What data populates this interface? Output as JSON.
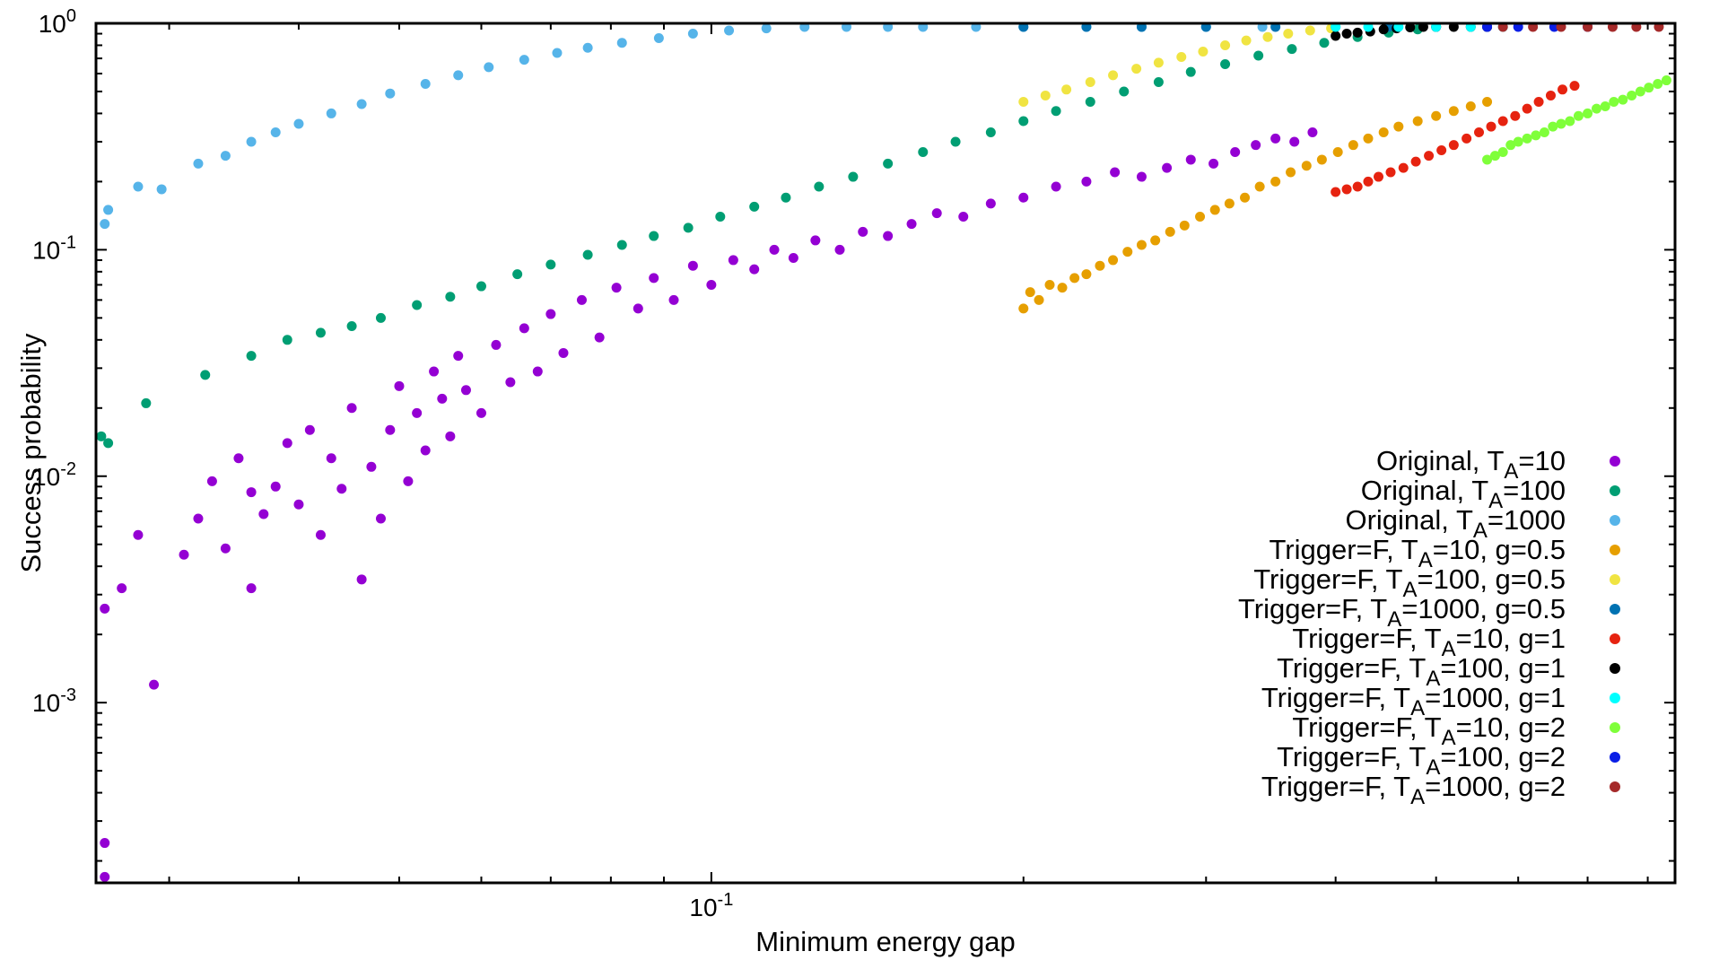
{
  "chart_data": {
    "type": "scatter",
    "xlabel": "Minimum energy gap",
    "ylabel": "Success probability",
    "xscale": "log",
    "yscale": "log",
    "xlim": [
      0.0255,
      0.85
    ],
    "ylim": [
      0.00016,
      1.0
    ],
    "grid": false,
    "legend_position": "bottom-right",
    "x_tick_labels": [
      {
        "value": 0.1,
        "base": "10",
        "exp": "-1"
      }
    ],
    "y_tick_labels": [
      {
        "value": 1,
        "base": "10",
        "exp": "0"
      },
      {
        "value": 0.1,
        "base": "10",
        "exp": "-1"
      },
      {
        "value": 0.01,
        "base": "10",
        "exp": "-2"
      },
      {
        "value": 0.001,
        "base": "10",
        "exp": "-3"
      }
    ],
    "series": [
      {
        "name_parts": [
          "Original, T",
          "A",
          "=10"
        ],
        "color": "#9400d3",
        "points": [
          [
            0.026,
            0.00017
          ],
          [
            0.026,
            0.00024
          ],
          [
            0.026,
            0.0026
          ],
          [
            0.027,
            0.0032
          ],
          [
            0.028,
            0.0055
          ],
          [
            0.029,
            0.0012
          ],
          [
            0.031,
            0.0045
          ],
          [
            0.032,
            0.0065
          ],
          [
            0.033,
            0.0095
          ],
          [
            0.034,
            0.0048
          ],
          [
            0.035,
            0.012
          ],
          [
            0.036,
            0.0085
          ],
          [
            0.036,
            0.0032
          ],
          [
            0.037,
            0.0068
          ],
          [
            0.038,
            0.009
          ],
          [
            0.039,
            0.014
          ],
          [
            0.04,
            0.0075
          ],
          [
            0.041,
            0.016
          ],
          [
            0.042,
            0.0055
          ],
          [
            0.043,
            0.012
          ],
          [
            0.044,
            0.0088
          ],
          [
            0.045,
            0.02
          ],
          [
            0.046,
            0.0035
          ],
          [
            0.047,
            0.011
          ],
          [
            0.048,
            0.0065
          ],
          [
            0.049,
            0.016
          ],
          [
            0.05,
            0.025
          ],
          [
            0.051,
            0.0095
          ],
          [
            0.052,
            0.019
          ],
          [
            0.053,
            0.013
          ],
          [
            0.054,
            0.029
          ],
          [
            0.055,
            0.022
          ],
          [
            0.056,
            0.015
          ],
          [
            0.057,
            0.034
          ],
          [
            0.058,
            0.024
          ],
          [
            0.06,
            0.019
          ],
          [
            0.062,
            0.038
          ],
          [
            0.064,
            0.026
          ],
          [
            0.066,
            0.045
          ],
          [
            0.068,
            0.029
          ],
          [
            0.07,
            0.052
          ],
          [
            0.072,
            0.035
          ],
          [
            0.075,
            0.06
          ],
          [
            0.078,
            0.041
          ],
          [
            0.081,
            0.068
          ],
          [
            0.085,
            0.055
          ],
          [
            0.088,
            0.075
          ],
          [
            0.092,
            0.06
          ],
          [
            0.096,
            0.085
          ],
          [
            0.1,
            0.07
          ],
          [
            0.105,
            0.09
          ],
          [
            0.11,
            0.082
          ],
          [
            0.115,
            0.1
          ],
          [
            0.12,
            0.092
          ],
          [
            0.126,
            0.11
          ],
          [
            0.133,
            0.1
          ],
          [
            0.14,
            0.12
          ],
          [
            0.148,
            0.115
          ],
          [
            0.156,
            0.13
          ],
          [
            0.165,
            0.145
          ],
          [
            0.175,
            0.14
          ],
          [
            0.186,
            0.16
          ],
          [
            0.2,
            0.17
          ],
          [
            0.215,
            0.19
          ],
          [
            0.23,
            0.2
          ],
          [
            0.245,
            0.22
          ],
          [
            0.26,
            0.21
          ],
          [
            0.275,
            0.23
          ],
          [
            0.29,
            0.25
          ],
          [
            0.305,
            0.24
          ],
          [
            0.32,
            0.27
          ],
          [
            0.335,
            0.29
          ],
          [
            0.35,
            0.31
          ],
          [
            0.365,
            0.3
          ],
          [
            0.38,
            0.33
          ]
        ]
      },
      {
        "name_parts": [
          "Original, T",
          "A",
          "=100"
        ],
        "color": "#009e73",
        "points": [
          [
            0.0258,
            0.015
          ],
          [
            0.0262,
            0.014
          ],
          [
            0.0285,
            0.021
          ],
          [
            0.0325,
            0.028
          ],
          [
            0.036,
            0.034
          ],
          [
            0.039,
            0.04
          ],
          [
            0.042,
            0.043
          ],
          [
            0.045,
            0.046
          ],
          [
            0.048,
            0.05
          ],
          [
            0.052,
            0.057
          ],
          [
            0.056,
            0.062
          ],
          [
            0.06,
            0.069
          ],
          [
            0.065,
            0.078
          ],
          [
            0.07,
            0.086
          ],
          [
            0.076,
            0.095
          ],
          [
            0.082,
            0.105
          ],
          [
            0.088,
            0.115
          ],
          [
            0.095,
            0.125
          ],
          [
            0.102,
            0.14
          ],
          [
            0.11,
            0.155
          ],
          [
            0.118,
            0.17
          ],
          [
            0.127,
            0.19
          ],
          [
            0.137,
            0.21
          ],
          [
            0.148,
            0.24
          ],
          [
            0.16,
            0.27
          ],
          [
            0.172,
            0.3
          ],
          [
            0.186,
            0.33
          ],
          [
            0.2,
            0.37
          ],
          [
            0.215,
            0.41
          ],
          [
            0.232,
            0.45
          ],
          [
            0.25,
            0.5
          ],
          [
            0.27,
            0.55
          ],
          [
            0.29,
            0.61
          ],
          [
            0.313,
            0.66
          ],
          [
            0.337,
            0.72
          ],
          [
            0.363,
            0.77
          ],
          [
            0.39,
            0.82
          ],
          [
            0.42,
            0.87
          ],
          [
            0.45,
            0.91
          ],
          [
            0.48,
            0.94
          ]
        ]
      },
      {
        "name_parts": [
          "Original, T",
          "A",
          "=1000"
        ],
        "color": "#56b4e9",
        "points": [
          [
            0.026,
            0.13
          ],
          [
            0.0262,
            0.15
          ],
          [
            0.028,
            0.19
          ],
          [
            0.0295,
            0.185
          ],
          [
            0.032,
            0.24
          ],
          [
            0.034,
            0.26
          ],
          [
            0.036,
            0.3
          ],
          [
            0.038,
            0.33
          ],
          [
            0.04,
            0.36
          ],
          [
            0.043,
            0.4
          ],
          [
            0.046,
            0.44
          ],
          [
            0.049,
            0.49
          ],
          [
            0.053,
            0.54
          ],
          [
            0.057,
            0.59
          ],
          [
            0.061,
            0.64
          ],
          [
            0.066,
            0.69
          ],
          [
            0.071,
            0.74
          ],
          [
            0.076,
            0.78
          ],
          [
            0.082,
            0.82
          ],
          [
            0.089,
            0.86
          ],
          [
            0.096,
            0.9
          ],
          [
            0.104,
            0.93
          ],
          [
            0.113,
            0.95
          ],
          [
            0.123,
            0.97
          ],
          [
            0.135,
            0.98
          ],
          [
            0.148,
            0.99
          ],
          [
            0.16,
            0.995
          ],
          [
            0.18,
            1.0
          ],
          [
            0.2,
            1.0
          ],
          [
            0.23,
            1.0
          ],
          [
            0.26,
            1.0
          ],
          [
            0.3,
            1.0
          ],
          [
            0.34,
            1.0
          ]
        ]
      },
      {
        "name_parts": [
          "Trigger=F, T",
          "A",
          "=10, g=0.5"
        ],
        "color": "#e69f00",
        "points": [
          [
            0.2,
            0.055
          ],
          [
            0.203,
            0.065
          ],
          [
            0.207,
            0.06
          ],
          [
            0.212,
            0.07
          ],
          [
            0.218,
            0.068
          ],
          [
            0.224,
            0.075
          ],
          [
            0.23,
            0.078
          ],
          [
            0.237,
            0.085
          ],
          [
            0.244,
            0.09
          ],
          [
            0.252,
            0.098
          ],
          [
            0.26,
            0.105
          ],
          [
            0.268,
            0.11
          ],
          [
            0.277,
            0.12
          ],
          [
            0.286,
            0.128
          ],
          [
            0.296,
            0.14
          ],
          [
            0.306,
            0.15
          ],
          [
            0.316,
            0.16
          ],
          [
            0.327,
            0.17
          ],
          [
            0.338,
            0.19
          ],
          [
            0.35,
            0.2
          ],
          [
            0.362,
            0.22
          ],
          [
            0.375,
            0.235
          ],
          [
            0.388,
            0.25
          ],
          [
            0.402,
            0.27
          ],
          [
            0.416,
            0.29
          ],
          [
            0.43,
            0.31
          ],
          [
            0.445,
            0.33
          ],
          [
            0.46,
            0.35
          ],
          [
            0.48,
            0.37
          ],
          [
            0.5,
            0.39
          ],
          [
            0.52,
            0.41
          ],
          [
            0.54,
            0.43
          ],
          [
            0.56,
            0.45
          ]
        ]
      },
      {
        "name_parts": [
          "Trigger=F, T",
          "A",
          "=100, g=0.5"
        ],
        "color": "#f0e442",
        "points": [
          [
            0.2,
            0.45
          ],
          [
            0.21,
            0.48
          ],
          [
            0.22,
            0.51
          ],
          [
            0.232,
            0.55
          ],
          [
            0.244,
            0.59
          ],
          [
            0.257,
            0.63
          ],
          [
            0.27,
            0.67
          ],
          [
            0.284,
            0.71
          ],
          [
            0.298,
            0.75
          ],
          [
            0.313,
            0.8
          ],
          [
            0.328,
            0.84
          ],
          [
            0.344,
            0.87
          ],
          [
            0.36,
            0.9
          ],
          [
            0.378,
            0.93
          ],
          [
            0.396,
            0.95
          ]
        ]
      },
      {
        "name_parts": [
          "Trigger=F, T",
          "A",
          "=1000, g=0.5"
        ],
        "color": "#0072b2",
        "points": [
          [
            0.2,
            1.0
          ],
          [
            0.23,
            1.0
          ],
          [
            0.26,
            1.0
          ],
          [
            0.3,
            1.0
          ],
          [
            0.35,
            1.0
          ],
          [
            0.4,
            1.0
          ],
          [
            0.45,
            1.0
          ],
          [
            0.5,
            1.0
          ],
          [
            0.56,
            1.0
          ]
        ]
      },
      {
        "name_parts": [
          "Trigger=F, T",
          "A",
          "=10, g=1"
        ],
        "color": "#e62310",
        "points": [
          [
            0.4,
            0.18
          ],
          [
            0.41,
            0.185
          ],
          [
            0.42,
            0.19
          ],
          [
            0.43,
            0.2
          ],
          [
            0.44,
            0.21
          ],
          [
            0.452,
            0.22
          ],
          [
            0.465,
            0.23
          ],
          [
            0.478,
            0.245
          ],
          [
            0.492,
            0.26
          ],
          [
            0.506,
            0.275
          ],
          [
            0.52,
            0.29
          ],
          [
            0.535,
            0.31
          ],
          [
            0.55,
            0.33
          ],
          [
            0.565,
            0.35
          ],
          [
            0.58,
            0.37
          ],
          [
            0.596,
            0.39
          ],
          [
            0.612,
            0.42
          ],
          [
            0.628,
            0.45
          ],
          [
            0.645,
            0.48
          ],
          [
            0.662,
            0.51
          ],
          [
            0.68,
            0.53
          ]
        ]
      },
      {
        "name_parts": [
          "Trigger=F, T",
          "A",
          "=100, g=1"
        ],
        "color": "#000000",
        "points": [
          [
            0.4,
            0.88
          ],
          [
            0.41,
            0.9
          ],
          [
            0.42,
            0.91
          ],
          [
            0.432,
            0.92
          ],
          [
            0.445,
            0.94
          ],
          [
            0.458,
            0.95
          ],
          [
            0.472,
            0.96
          ],
          [
            0.486,
            0.97
          ],
          [
            0.5,
            0.98
          ],
          [
            0.52,
            0.99
          ],
          [
            0.54,
            0.995
          ],
          [
            0.56,
            1.0
          ]
        ]
      },
      {
        "name_parts": [
          "Trigger=F, T",
          "A",
          "=1000, g=1"
        ],
        "color": "#00ffff",
        "points": [
          [
            0.4,
            1.0
          ],
          [
            0.43,
            1.0
          ],
          [
            0.46,
            1.0
          ],
          [
            0.5,
            1.0
          ],
          [
            0.54,
            1.0
          ],
          [
            0.58,
            1.0
          ]
        ]
      },
      {
        "name_parts": [
          "Trigger=F, T",
          "A",
          "=10, g=2"
        ],
        "color": "#7fff3a",
        "points": [
          [
            0.56,
            0.25
          ],
          [
            0.57,
            0.26
          ],
          [
            0.58,
            0.27
          ],
          [
            0.59,
            0.29
          ],
          [
            0.6,
            0.3
          ],
          [
            0.612,
            0.31
          ],
          [
            0.624,
            0.32
          ],
          [
            0.636,
            0.33
          ],
          [
            0.648,
            0.35
          ],
          [
            0.66,
            0.36
          ],
          [
            0.673,
            0.37
          ],
          [
            0.686,
            0.39
          ],
          [
            0.7,
            0.4
          ],
          [
            0.714,
            0.42
          ],
          [
            0.728,
            0.43
          ],
          [
            0.742,
            0.45
          ],
          [
            0.757,
            0.46
          ],
          [
            0.772,
            0.48
          ],
          [
            0.787,
            0.5
          ],
          [
            0.802,
            0.52
          ],
          [
            0.818,
            0.54
          ],
          [
            0.834,
            0.56
          ]
        ]
      },
      {
        "name_parts": [
          "Trigger=F, T",
          "A",
          "=100, g=2"
        ],
        "color": "#0a1ee6",
        "points": [
          [
            0.56,
            0.995
          ],
          [
            0.6,
            0.998
          ],
          [
            0.65,
            1.0
          ],
          [
            0.7,
            1.0
          ]
        ]
      },
      {
        "name_parts": [
          "Trigger=F, T",
          "A",
          "=1000, g=2"
        ],
        "color": "#a52a2a",
        "points": [
          [
            0.58,
            1.0
          ],
          [
            0.62,
            1.0
          ],
          [
            0.66,
            1.0
          ],
          [
            0.7,
            1.0
          ],
          [
            0.74,
            1.0
          ],
          [
            0.78,
            1.0
          ],
          [
            0.82,
            1.0
          ]
        ]
      }
    ]
  }
}
